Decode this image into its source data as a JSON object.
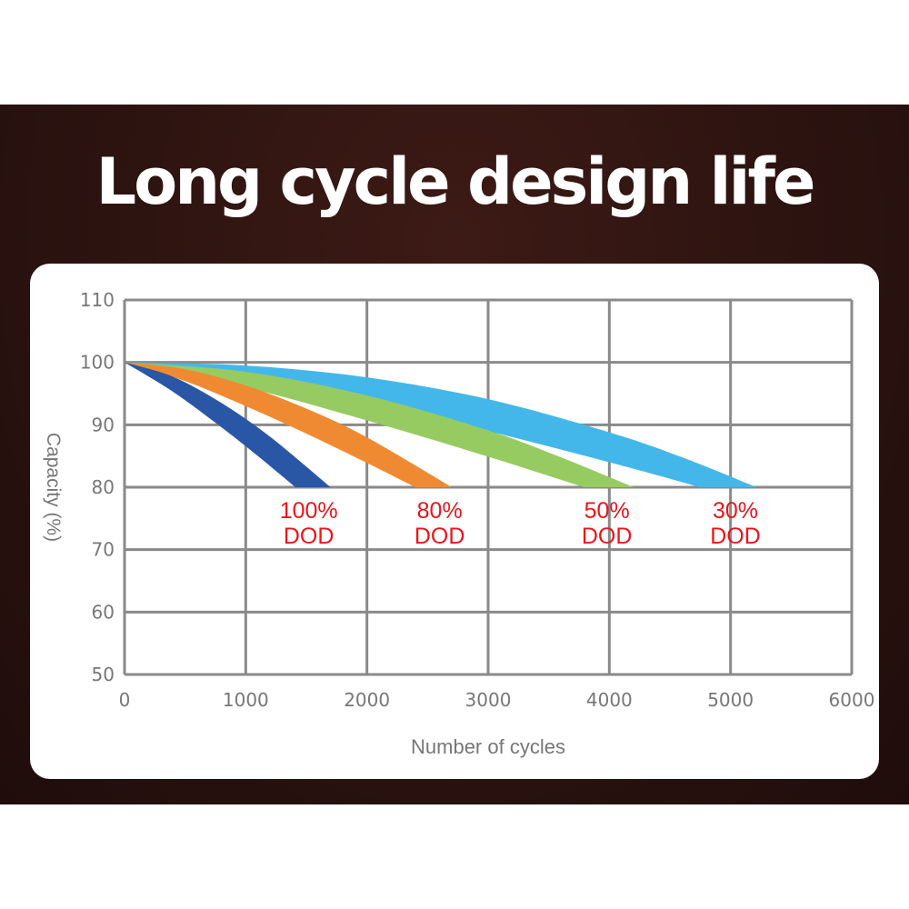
{
  "title": "Long cycle design life",
  "chart_data": {
    "type": "area",
    "title": "Long cycle design life",
    "xlabel": "Number of cycles",
    "ylabel": "Capacity (%)",
    "xlim": [
      0,
      6000
    ],
    "ylim": [
      50,
      110
    ],
    "xticks": [
      "0",
      "1000",
      "2000",
      "3000",
      "4000",
      "5000",
      "6000"
    ],
    "yticks": [
      "110",
      "100",
      "90",
      "80",
      "70",
      "60",
      "50"
    ],
    "grid": true,
    "label_color": "#e8161c",
    "series": [
      {
        "name": "100% DOD",
        "line1": "100%",
        "line2": "DOD",
        "color": "#2a56a6",
        "outer": [
          [
            0,
            100
          ],
          [
            400,
            97.7
          ],
          [
            800,
            93.5
          ],
          [
            1200,
            88.1
          ],
          [
            1700,
            80
          ]
        ],
        "inner": [
          [
            0,
            100
          ],
          [
            400,
            95.3
          ],
          [
            800,
            89.6
          ],
          [
            1100,
            85.0
          ],
          [
            1410,
            80
          ]
        ]
      },
      {
        "name": "80% DOD",
        "line1": "80%",
        "line2": "DOD",
        "color": "#f08a32",
        "outer": [
          [
            0,
            100
          ],
          [
            500,
            98.9
          ],
          [
            1000,
            96.3
          ],
          [
            1500,
            92.6
          ],
          [
            2000,
            88.0
          ],
          [
            2700,
            80
          ]
        ],
        "inner": [
          [
            0,
            100
          ],
          [
            500,
            97.0
          ],
          [
            1000,
            93.0
          ],
          [
            1500,
            88.6
          ],
          [
            2000,
            83.9
          ],
          [
            2400,
            80
          ]
        ]
      },
      {
        "name": "50% DOD",
        "line1": "50%",
        "line2": "DOD",
        "color": "#96cb62",
        "outer": [
          [
            0,
            100
          ],
          [
            1000,
            98.5
          ],
          [
            2000,
            94.7
          ],
          [
            3000,
            89.1
          ],
          [
            3600,
            84.8
          ],
          [
            4200,
            80
          ]
        ],
        "inner": [
          [
            0,
            100
          ],
          [
            1000,
            96.0
          ],
          [
            2000,
            90.7
          ],
          [
            3000,
            84.9
          ],
          [
            3790,
            80
          ]
        ]
      },
      {
        "name": "30% DOD",
        "line1": "30%",
        "line2": "DOD",
        "color": "#44b7ea",
        "outer": [
          [
            0,
            100
          ],
          [
            1000,
            99.5
          ],
          [
            2000,
            97.6
          ],
          [
            3000,
            94.1
          ],
          [
            4000,
            88.8
          ],
          [
            4600,
            84.8
          ],
          [
            5215,
            80
          ]
        ],
        "inner": [
          [
            0,
            100
          ],
          [
            1000,
            97.4
          ],
          [
            2000,
            93.5
          ],
          [
            3000,
            89.0
          ],
          [
            4000,
            84.0
          ],
          [
            4750,
            80
          ]
        ]
      }
    ]
  }
}
